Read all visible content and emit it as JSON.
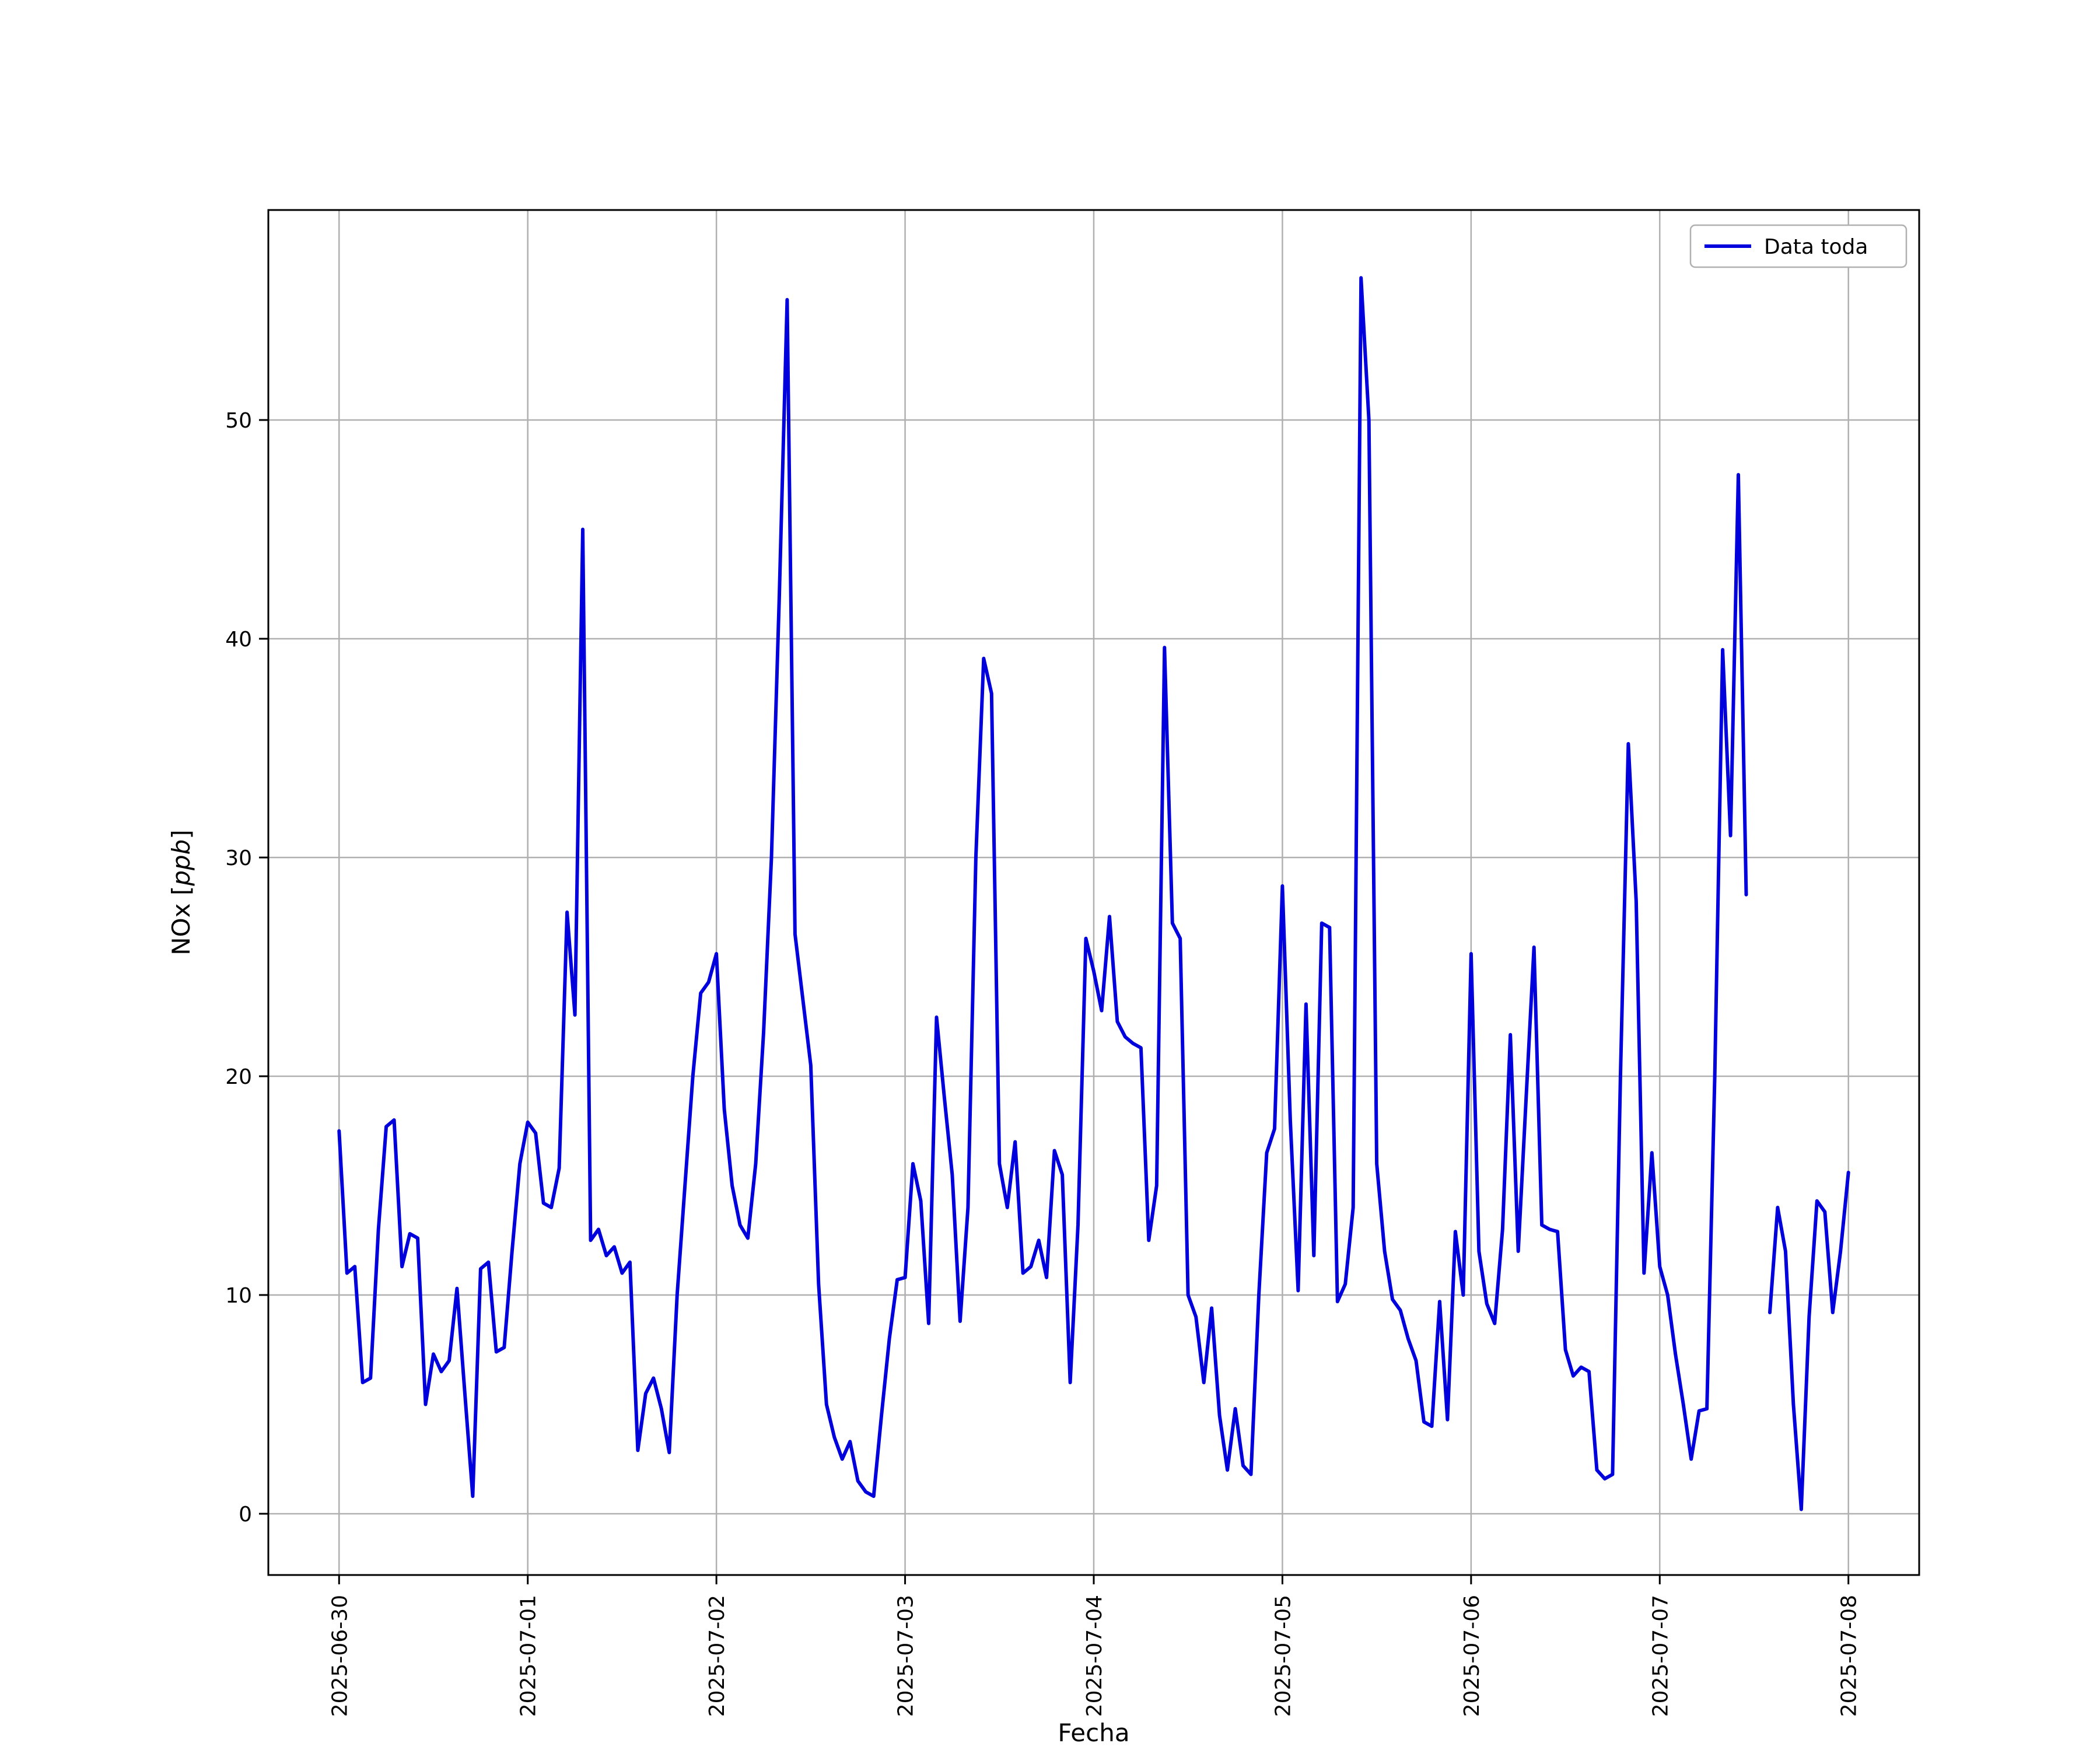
{
  "chart_data": {
    "type": "line",
    "title": "",
    "xlabel": "Fecha",
    "ylabel": "NOx [ppb]",
    "ylabel_parts": {
      "prefix": "NOx [",
      "italic": "ppb",
      "suffix": "]"
    },
    "legend_position": "upper right",
    "grid": true,
    "x_start": "2025-06-30 00:00",
    "x_step_hours": 1,
    "xlim_hours": [
      -9,
      201
    ],
    "ylim": [
      -2.8,
      59.6
    ],
    "y_ticks": [
      0,
      10,
      20,
      30,
      40,
      50
    ],
    "x_ticks": [
      {
        "hour": 0,
        "label": "2025-06-30"
      },
      {
        "hour": 24,
        "label": "2025-07-01"
      },
      {
        "hour": 48,
        "label": "2025-07-02"
      },
      {
        "hour": 72,
        "label": "2025-07-03"
      },
      {
        "hour": 96,
        "label": "2025-07-04"
      },
      {
        "hour": 120,
        "label": "2025-07-05"
      },
      {
        "hour": 144,
        "label": "2025-07-06"
      },
      {
        "hour": 168,
        "label": "2025-07-07"
      },
      {
        "hour": 192,
        "label": "2025-07-08"
      }
    ],
    "colors": {
      "line": "#0000dd",
      "grid": "#b0b0b0",
      "spine": "#000000",
      "legend_border": "#b0b0b0",
      "background": "#ffffff"
    },
    "series": [
      {
        "name": "Data toda",
        "values": [
          17.5,
          11.0,
          11.3,
          6.0,
          6.2,
          13.0,
          17.7,
          18.0,
          11.3,
          12.8,
          12.6,
          5.0,
          7.3,
          6.5,
          7.0,
          10.3,
          5.5,
          0.8,
          11.2,
          11.5,
          7.4,
          7.6,
          12.0,
          16.0,
          17.9,
          17.4,
          14.2,
          14.0,
          15.8,
          27.5,
          22.8,
          45.0,
          12.5,
          13.0,
          11.8,
          12.2,
          11.0,
          11.5,
          2.9,
          5.5,
          6.2,
          4.8,
          2.8,
          10.0,
          15.0,
          20.0,
          23.8,
          24.3,
          25.6,
          18.5,
          15.0,
          13.2,
          12.6,
          16.0,
          22.0,
          30.0,
          42.0,
          55.5,
          26.5,
          23.5,
          20.5,
          10.5,
          5.0,
          3.5,
          2.5,
          3.3,
          1.5,
          1.0,
          0.8,
          4.5,
          8.0,
          10.7,
          10.8,
          16.0,
          14.3,
          8.7,
          22.7,
          19.0,
          15.5,
          8.8,
          14.0,
          30.0,
          39.1,
          37.5,
          16.0,
          14.0,
          17.0,
          11.0,
          11.3,
          12.5,
          10.8,
          16.6,
          15.5,
          6.0,
          13.2,
          26.3,
          24.8,
          23.0,
          27.3,
          22.5,
          21.8,
          21.5,
          21.3,
          12.5,
          15.0,
          39.6,
          27.0,
          26.3,
          10.0,
          9.0,
          6.0,
          9.4,
          4.5,
          2.0,
          4.8,
          2.2,
          1.8,
          10.0,
          16.5,
          17.6,
          28.7,
          18.0,
          10.2,
          23.3,
          11.8,
          27.0,
          26.8,
          9.7,
          10.5,
          14.0,
          56.5,
          50.0,
          16.0,
          12.0,
          9.8,
          9.3,
          8.0,
          7.0,
          4.2,
          4.0,
          9.7,
          4.3,
          12.9,
          10.0,
          25.6,
          12.0,
          9.6,
          8.7,
          13.0,
          21.9,
          12.0,
          19.0,
          25.9,
          13.2,
          13.0,
          12.9,
          7.5,
          6.3,
          6.7,
          6.5,
          2.0,
          1.6,
          1.8,
          20.0,
          35.2,
          28.0,
          11.0,
          16.5,
          11.3,
          10.0,
          7.3,
          5.0,
          2.5,
          4.7,
          4.8,
          20.0,
          39.5,
          31.0,
          47.5,
          28.3,
          null,
          null,
          9.2,
          14.0,
          12.0,
          5.0,
          0.2,
          9.0,
          14.3,
          13.8,
          9.2,
          12.0,
          15.6
        ]
      }
    ]
  }
}
